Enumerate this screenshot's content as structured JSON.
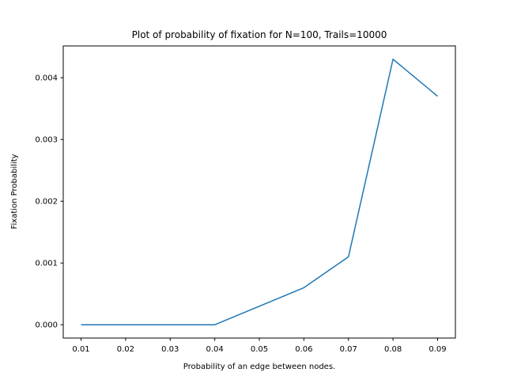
{
  "chart_data": {
    "type": "line",
    "title": "Plot of probability of fixation for N=100, Trails=10000",
    "xlabel": "Probability of an edge between nodes.",
    "ylabel": "Fixation Probability",
    "xlim": [
      0.006,
      0.094
    ],
    "ylim": [
      -0.000215,
      0.004515
    ],
    "xticks": [
      0.01,
      0.02,
      0.03,
      0.04,
      0.05,
      0.06,
      0.07,
      0.08,
      0.09
    ],
    "xtick_labels": [
      "0.01",
      "0.02",
      "0.03",
      "0.04",
      "0.05",
      "0.06",
      "0.07",
      "0.08",
      "0.09"
    ],
    "yticks": [
      0.0,
      0.001,
      0.002,
      0.003,
      0.004
    ],
    "ytick_labels": [
      "0.000",
      "0.001",
      "0.002",
      "0.003",
      "0.004"
    ],
    "grid": false,
    "series": [
      {
        "color": "#1f77b4",
        "x": [
          0.01,
          0.04,
          0.06,
          0.07,
          0.08,
          0.09
        ],
        "y": [
          0.0,
          0.0,
          0.0006,
          0.0011,
          0.0043,
          0.0037
        ]
      }
    ]
  }
}
